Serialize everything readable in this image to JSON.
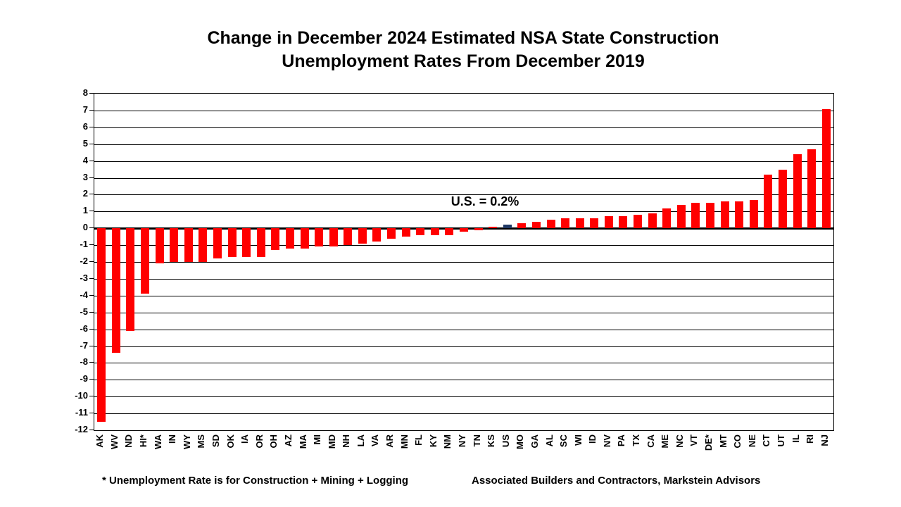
{
  "title": {
    "line1": "Change in December 2024 Estimated NSA State Construction",
    "line2": "Unemployment Rates From December 2019"
  },
  "annotation": "U.S. = 0.2%",
  "footnote": "* Unemployment Rate is for Construction + Mining + Logging",
  "source": "Associated Builders and Contractors, Markstein Advisors",
  "colors": {
    "bar": "#FF0000",
    "highlight_bar": "#1F3864",
    "grid": "#000000",
    "background": "#FFFFFF"
  },
  "chart_data": {
    "type": "bar",
    "title": "Change in December 2024 Estimated NSA State Construction Unemployment Rates From December 2019",
    "xlabel": "",
    "ylabel": "",
    "ylim": [
      -12,
      8
    ],
    "ytick_step": 1,
    "grid": true,
    "legend": false,
    "highlight_category": "US",
    "annotation": {
      "text": "U.S. = 0.2%",
      "target": "US"
    },
    "categories": [
      "AK",
      "WV",
      "ND",
      "HI*",
      "WA",
      "IN",
      "WY",
      "MS",
      "SD",
      "OK",
      "IA",
      "OR",
      "OH",
      "AZ",
      "MA",
      "MI",
      "MD",
      "NH",
      "LA",
      "VA",
      "AR",
      "MN",
      "FL",
      "KY",
      "NM",
      "NY",
      "TN",
      "KS",
      "US",
      "MO",
      "GA",
      "AL",
      "SC",
      "WI",
      "ID",
      "NV",
      "PA",
      "TX",
      "CA",
      "ME",
      "NC",
      "VT",
      "DE*",
      "MT",
      "CO",
      "NE",
      "CT",
      "UT",
      "IL",
      "RI",
      "NJ"
    ],
    "values": [
      -11.5,
      -7.4,
      -6.1,
      -3.9,
      -2.1,
      -2.0,
      -2.0,
      -2.0,
      -1.8,
      -1.7,
      -1.7,
      -1.7,
      -1.3,
      -1.2,
      -1.2,
      -1.1,
      -1.1,
      -1.0,
      -0.9,
      -0.8,
      -0.6,
      -0.5,
      -0.4,
      -0.4,
      -0.4,
      -0.2,
      -0.1,
      0.1,
      0.2,
      0.3,
      0.4,
      0.5,
      0.6,
      0.6,
      0.6,
      0.7,
      0.7,
      0.8,
      0.9,
      1.2,
      1.4,
      1.5,
      1.5,
      1.6,
      1.6,
      1.7,
      3.2,
      3.5,
      4.4,
      4.7,
      7.1
    ]
  }
}
